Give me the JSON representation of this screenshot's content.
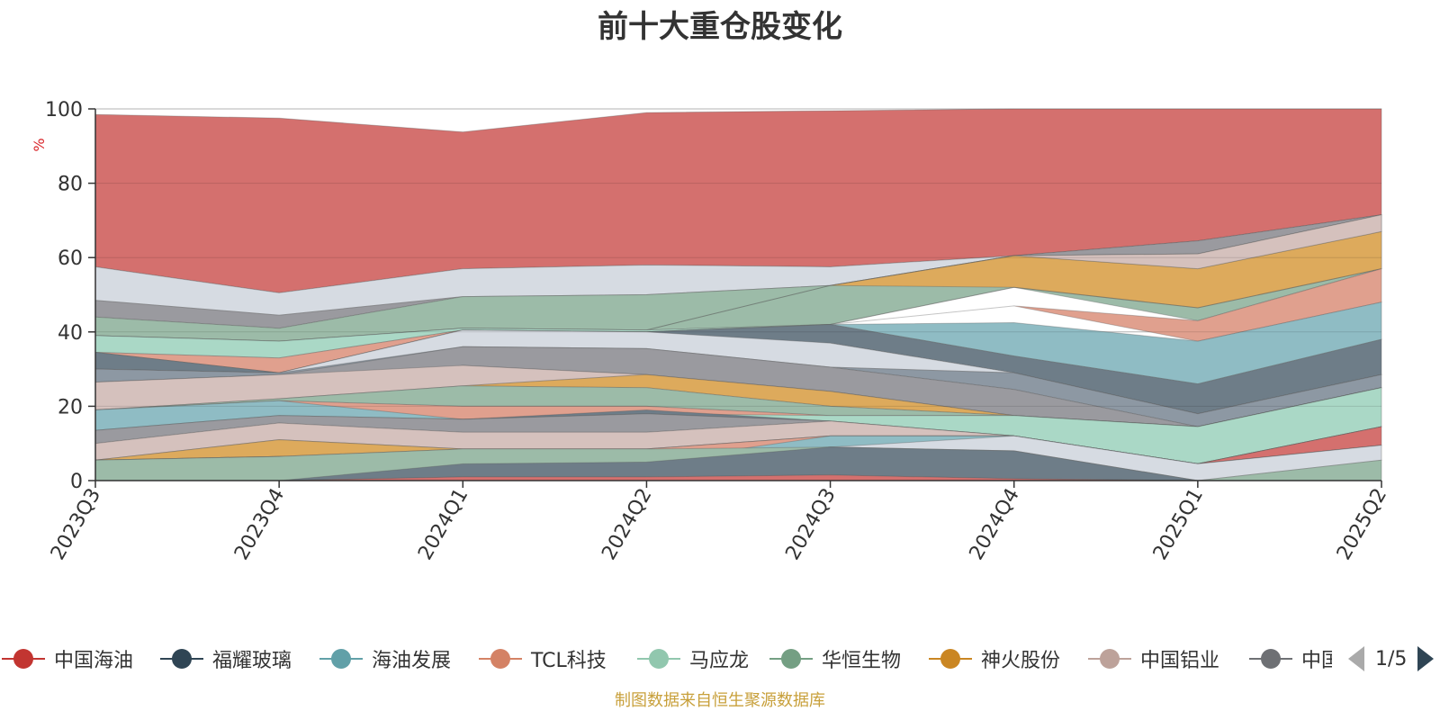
{
  "chart_data": {
    "type": "area",
    "title": "前十大重仓股变化",
    "ylabel": "%",
    "ylim": [
      0,
      100
    ],
    "yticks": [
      0,
      20,
      40,
      60,
      80,
      100
    ],
    "grid": true,
    "legend_position": "bottom",
    "categories": [
      "2023Q3",
      "2023Q4",
      "2024Q1",
      "2024Q2",
      "2024Q3",
      "2024Q4",
      "2025Q1",
      "2025Q2"
    ],
    "layers": [
      {
        "color": "#d4706e",
        "lower": [
          57.5,
          50.5,
          57,
          58,
          57.5,
          60.5,
          64.5,
          71.5
        ],
        "upper": [
          98.5,
          97.5,
          93.8,
          99,
          99.5,
          100,
          100,
          100
        ]
      },
      {
        "color": "#d6dbe2",
        "lower": [
          48.5,
          44.5,
          49.5,
          50,
          52.5,
          60.5,
          61,
          71.5
        ],
        "upper": [
          57.5,
          50.5,
          57,
          58,
          57.5,
          60.5,
          64.5,
          71.5
        ]
      },
      {
        "color": "#9a9a9f",
        "lower": [
          44,
          41,
          49.5,
          50,
          52.5,
          60.5,
          61,
          71.5
        ],
        "upper": [
          48.5,
          44.5,
          49.5,
          50,
          52.5,
          60.5,
          64.5,
          71.5
        ]
      },
      {
        "color": "#9cbba8",
        "lower": [
          39,
          37.5,
          41,
          40.5,
          42,
          52,
          43,
          57
        ],
        "upper": [
          44,
          41,
          49.5,
          50,
          52.5,
          60.5,
          61,
          71.5
        ]
      },
      {
        "color": "#ddaa5c",
        "lower": [
          39,
          37.5,
          41,
          40.5,
          52.5,
          52,
          46.5,
          57
        ],
        "upper": [
          39,
          37.5,
          41,
          40.5,
          52.5,
          60.5,
          57,
          67
        ]
      },
      {
        "color": "#d5c1bd",
        "lower": [
          39,
          37.5,
          41,
          40.5,
          52.5,
          60.5,
          57,
          67
        ],
        "upper": [
          39,
          37.5,
          41,
          40.5,
          52.5,
          60.5,
          61,
          71.5
        ]
      },
      {
        "color": "#aad8c6",
        "lower": [
          34.5,
          33,
          40.5,
          40,
          42,
          52,
          46.5,
          57
        ],
        "upper": [
          39,
          37.5,
          41,
          40.5,
          42,
          52,
          46.5,
          57
        ]
      },
      {
        "color": "#e0a08e",
        "lower": [
          34.5,
          29,
          40.5,
          40,
          42,
          47,
          37.5,
          48
        ],
        "upper": [
          34.5,
          33,
          40.5,
          40,
          42,
          47,
          43,
          57
        ]
      },
      {
        "color": "#8fbcc4",
        "lower": [
          30,
          29,
          40.5,
          40,
          42,
          33.5,
          26,
          38
        ],
        "upper": [
          34.5,
          29,
          40.5,
          40,
          42,
          42.5,
          37.5,
          48
        ]
      },
      {
        "color": "#6e7d88",
        "lower": [
          30,
          29,
          36,
          35.5,
          37,
          29,
          18,
          28.5
        ],
        "upper": [
          34.5,
          29,
          40.5,
          40,
          42,
          33.5,
          26,
          38
        ]
      },
      {
        "color": "#d6dbe2",
        "lower": [
          26.5,
          28.5,
          36,
          35.5,
          30.5,
          29,
          18,
          28.5
        ],
        "upper": [
          30,
          29,
          40.5,
          40,
          37,
          29,
          18,
          28.5
        ]
      },
      {
        "color": "#8d98a3",
        "lower": [
          26.5,
          28.5,
          31,
          28.5,
          30.5,
          24.5,
          14.5,
          25
        ],
        "upper": [
          30,
          29,
          36,
          35.5,
          30.5,
          29,
          18,
          28.5
        ]
      },
      {
        "color": "#9a9a9f",
        "lower": [
          26.5,
          22,
          31,
          28.5,
          24,
          17.5,
          14.5,
          25
        ],
        "upper": [
          26.5,
          28.5,
          36,
          35.5,
          30.5,
          24.5,
          14.5,
          25
        ]
      },
      {
        "color": "#d5c1bd",
        "lower": [
          19,
          22,
          25.5,
          28.5,
          24,
          17.5,
          14.5,
          25
        ],
        "upper": [
          26.5,
          28.5,
          31,
          28.5,
          24,
          17.5,
          14.5,
          25
        ]
      },
      {
        "color": "#ddaa5c",
        "lower": [
          19,
          22,
          25.5,
          25,
          20,
          17.5,
          14.5,
          25
        ],
        "upper": [
          19,
          22,
          25.5,
          28.5,
          24,
          17.5,
          14.5,
          25
        ]
      },
      {
        "color": "#9cbba8",
        "lower": [
          19,
          21.5,
          20,
          20,
          17.5,
          17.5,
          14.5,
          25
        ],
        "upper": [
          19,
          22,
          25.5,
          25,
          20,
          17.5,
          14.5,
          25
        ]
      },
      {
        "color": "#e0a08e",
        "lower": [
          19,
          19,
          16.5,
          18,
          16,
          17.5,
          14.5,
          25
        ],
        "upper": [
          19,
          21.5,
          20,
          20,
          17.5,
          17.5,
          14.5,
          25
        ]
      },
      {
        "color": "#aad8c6",
        "lower": [
          19,
          19,
          16.5,
          18,
          16,
          12,
          4.5,
          14.5
        ],
        "upper": [
          19,
          19,
          16.5,
          18,
          17.5,
          17.5,
          14.5,
          25
        ]
      },
      {
        "color": "#8fbcc4",
        "lower": [
          13.5,
          17.5,
          16.5,
          18,
          16,
          12,
          4.5,
          14.5
        ],
        "upper": [
          19,
          21.5,
          16.5,
          18,
          16,
          12,
          4.5,
          14.5
        ]
      },
      {
        "color": "#6e7d88",
        "lower": [
          13.5,
          17.5,
          16.5,
          18,
          16,
          12,
          4.5,
          14.5
        ],
        "upper": [
          13.5,
          17.5,
          16.5,
          19,
          16,
          12,
          4.5,
          14.5
        ]
      },
      {
        "color": "#9a9a9f",
        "lower": [
          10,
          15.5,
          13,
          13,
          16,
          12,
          4.5,
          14.5
        ],
        "upper": [
          13.5,
          17.5,
          16.5,
          18,
          16,
          12,
          4.5,
          14.5
        ]
      },
      {
        "color": "#d5c1bd",
        "lower": [
          5.5,
          11,
          8.5,
          8.5,
          12,
          12,
          4.5,
          14.5
        ],
        "upper": [
          10,
          15.5,
          13,
          13,
          16,
          12,
          4.5,
          14.5
        ]
      },
      {
        "color": "#d4706e",
        "lower": [
          5.5,
          11,
          8.5,
          8.5,
          12,
          12,
          4.5,
          9.5
        ],
        "upper": [
          5.5,
          11,
          8.5,
          8.5,
          12,
          12,
          4.5,
          14.5
        ]
      },
      {
        "color": "#ddaa5c",
        "lower": [
          5.5,
          6.5,
          8.5,
          8.5,
          12,
          12,
          4.5,
          9.5
        ],
        "upper": [
          5.5,
          11,
          8.5,
          8.5,
          12,
          12,
          4.5,
          9.5
        ]
      },
      {
        "color": "#e0a08e",
        "lower": [
          5.5,
          6.5,
          4.5,
          5,
          9,
          12,
          4.5,
          9.5
        ],
        "upper": [
          5.5,
          6.5,
          8.5,
          8.5,
          12,
          12,
          4.5,
          9.5
        ]
      },
      {
        "color": "#8fbcc4",
        "lower": [
          5.5,
          6.5,
          4.5,
          5,
          9,
          8,
          4.5,
          9.5
        ],
        "upper": [
          5.5,
          6.5,
          4.5,
          5,
          12,
          12,
          4.5,
          9.5
        ]
      },
      {
        "color": "#d6dbe2",
        "lower": [
          5.5,
          6.5,
          4.5,
          5,
          9,
          8,
          0,
          5.5
        ],
        "upper": [
          5.5,
          6.5,
          4.5,
          5,
          9,
          12,
          4.5,
          9.5
        ]
      },
      {
        "color": "#9cbba8",
        "lower": [
          0,
          0,
          0,
          0,
          0,
          0,
          0,
          0
        ],
        "upper": [
          5.5,
          6.5,
          8.5,
          8.5,
          9,
          8,
          0,
          5.5
        ]
      },
      {
        "color": "#6e7d88",
        "lower": [
          0,
          0,
          1,
          1,
          1.5,
          0.5,
          0,
          0
        ],
        "upper": [
          0,
          0,
          4.5,
          5,
          9,
          8,
          0,
          0
        ]
      },
      {
        "color": "#d4706e",
        "lower": [
          0,
          0,
          0,
          0,
          0,
          0,
          0,
          0
        ],
        "upper": [
          0,
          0,
          1,
          1,
          1.5,
          0.5,
          0,
          0
        ]
      }
    ],
    "legend": {
      "items": [
        {
          "label": "中国海油",
          "color": "#c23531"
        },
        {
          "label": "福耀玻璃",
          "color": "#2f4554"
        },
        {
          "label": "海油发展",
          "color": "#61a0a8"
        },
        {
          "label": "TCL科技",
          "color": "#d48265"
        },
        {
          "label": "马应龙",
          "color": "#91c7ae"
        },
        {
          "label": "华恒生物",
          "color": "#749f83"
        },
        {
          "label": "神火股份",
          "color": "#ca8622"
        },
        {
          "label": "中国铝业",
          "color": "#bda29a"
        },
        {
          "label": "中国",
          "color": "#6e7074"
        }
      ],
      "page": "1/5"
    }
  },
  "source_note": "制图数据来自恒生聚源数据库"
}
